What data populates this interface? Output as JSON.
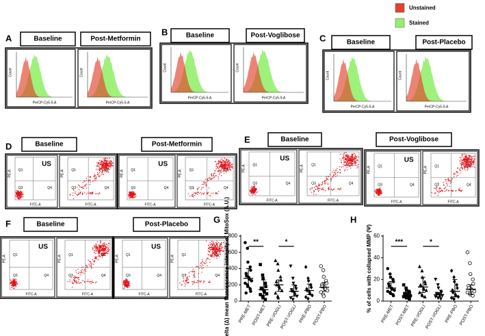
{
  "legend": {
    "items": [
      {
        "label": "Unstained",
        "color": "#e2422c"
      },
      {
        "label": "Stained",
        "color": "#93f06c"
      }
    ]
  },
  "histogram_panels": [
    {
      "letter": "A",
      "plots": [
        {
          "title": "Baseline",
          "y_label": "Count",
          "x_label": "PerCP-Cy5-5-A"
        },
        {
          "title": "Post-Metformin",
          "y_label": "Count",
          "x_label": "PerCP-Cy5-5-A"
        }
      ]
    },
    {
      "letter": "B",
      "plots": [
        {
          "title": "Baseline",
          "y_label": "Count",
          "x_label": "PerCP-Cy5-5-A"
        },
        {
          "title": "Post-Voglibose",
          "y_label": "Count",
          "x_label": "PerCP-Cy5-5-A"
        }
      ]
    },
    {
      "letter": "C",
      "plots": [
        {
          "title": "Baseline",
          "y_label": "Count",
          "x_label": "PerCP-Cy5-5-A"
        },
        {
          "title": "Post-Placebo",
          "y_label": "Count",
          "x_label": "PerCP-Cy5-5-A"
        }
      ]
    }
  ],
  "flow_panels": [
    {
      "letter": "D",
      "groups": [
        {
          "title": "Baseline",
          "plots": [
            {
              "tag": "US",
              "quadrants": [
                "Q1",
                "Q3",
                "Q4"
              ],
              "y_label": "PE-A",
              "x_label": "FITC-A"
            },
            {
              "quadrants": [
                "Q1",
                "Q2",
                "Q3",
                "Q4"
              ],
              "y_label": "PE-A",
              "x_label": "FITC-A"
            }
          ]
        },
        {
          "title": "Post-Metformin",
          "plots": [
            {
              "tag": "US",
              "quadrants": [
                "Q1",
                "Q3",
                "Q4"
              ],
              "y_label": "PE-A",
              "x_label": "FITC-A"
            },
            {
              "quadrants": [
                "Q1",
                "Q2",
                "Q3",
                "Q4"
              ],
              "y_label": "PE-A",
              "x_label": "FITC-A"
            }
          ]
        }
      ]
    },
    {
      "letter": "E",
      "groups": [
        {
          "title": "Baseline",
          "plots": [
            {
              "tag": "US",
              "quadrants": [
                "Q1",
                "Q3",
                "Q4"
              ],
              "y_label": "PE-A",
              "x_label": "FITC-A"
            },
            {
              "quadrants": [
                "Q1",
                "Q2",
                "Q3",
                "Q4"
              ],
              "y_label": "PE-A",
              "x_label": "FITC-A"
            }
          ]
        },
        {
          "title": "Post-Voglibose",
          "plots": [
            {
              "tag": "US",
              "quadrants": [
                "Q1",
                "Q3",
                "Q4"
              ],
              "y_label": "PE-A",
              "x_label": "FITC-A"
            },
            {
              "quadrants": [
                "Q1",
                "Q2",
                "Q3",
                "Q4"
              ],
              "y_label": "PE-A",
              "x_label": "FITC-A"
            }
          ]
        }
      ]
    },
    {
      "letter": "F",
      "groups": [
        {
          "title": "Baseline",
          "plots": [
            {
              "tag": "US",
              "quadrants": [
                "Q1",
                "Q3",
                "Q4"
              ],
              "y_label": "PE-A",
              "x_label": "FITC-A"
            },
            {
              "quadrants": [
                "Q1",
                "Q2",
                "Q3",
                "Q4"
              ],
              "y_label": "PE-A",
              "x_label": "FITC-A"
            }
          ]
        },
        {
          "title": "Post-Placebo",
          "plots": [
            {
              "tag": "US",
              "quadrants": [
                "Q1",
                "Q3",
                "Q4"
              ],
              "y_label": "PE-A",
              "x_label": "FITC-A"
            },
            {
              "quadrants": [
                "Q1",
                "Q2",
                "Q3",
                "Q4"
              ],
              "y_label": "PE-A",
              "x_label": "FITC-A"
            }
          ]
        }
      ]
    }
  ],
  "chart_data": [
    {
      "type": "strip",
      "letter": "G",
      "y_label": "Delta (Δ) mean fluorescence intensity of MitoSox (A.U.)",
      "categories": [
        "PRE-MET",
        "POST-MET",
        "PRE-VOGLI",
        "POST-VOGLI",
        "PRE-PBO",
        "POST-PBO"
      ],
      "markers": [
        "circle",
        "square",
        "triangle",
        "triangle-down",
        "diamond",
        "circle-open"
      ],
      "color": "#000000",
      "ylim": [
        0,
        800
      ],
      "yticks": [
        0,
        200,
        400,
        600,
        800
      ],
      "points": [
        [
          720,
          650,
          480,
          420,
          380,
          340,
          310,
          290,
          270,
          250,
          220,
          200,
          180,
          150,
          120,
          100
        ],
        [
          450,
          320,
          280,
          220,
          180,
          160,
          150,
          130,
          110,
          90,
          80,
          60,
          40,
          20
        ],
        [
          500,
          460,
          380,
          300,
          260,
          240,
          200,
          180,
          160,
          130,
          100,
          60,
          40
        ],
        [
          430,
          280,
          220,
          180,
          150,
          140,
          120,
          100,
          80,
          60,
          40,
          20
        ],
        [
          420,
          280,
          250,
          200,
          170,
          150,
          130,
          110,
          90,
          70,
          50,
          30
        ],
        [
          430,
          380,
          300,
          250,
          220,
          200,
          180,
          170,
          150,
          130,
          110,
          80,
          60
        ]
      ],
      "center": [
        280,
        140,
        200,
        120,
        130,
        170
      ],
      "low": [
        170,
        70,
        120,
        60,
        80,
        120
      ],
      "high": [
        400,
        260,
        260,
        200,
        210,
        230
      ],
      "annotations": [
        "**",
        "*"
      ]
    },
    {
      "type": "strip",
      "letter": "H",
      "y_label": "% of cells with collapsed MMP (Ψ)",
      "categories": [
        "PRE-MET",
        "POST-MET",
        "PRE-VOGLI",
        "POST-VOGLI",
        "PRE-PBO",
        "POST-PBO"
      ],
      "markers": [
        "circle",
        "square",
        "triangle",
        "triangle-down",
        "diamond",
        "circle-open"
      ],
      "color": "#000000",
      "ylim": [
        0,
        60
      ],
      "yticks": [
        0,
        20,
        40,
        60
      ],
      "points": [
        [
          30,
          25,
          22,
          20,
          18,
          16,
          14,
          12,
          11,
          10,
          9,
          8,
          7,
          6,
          5
        ],
        [
          15,
          12,
          10,
          9,
          8,
          7,
          6,
          6,
          5,
          5,
          4,
          4,
          3,
          3,
          2
        ],
        [
          32,
          28,
          22,
          18,
          16,
          15,
          14,
          12,
          11,
          10,
          8,
          6,
          5,
          4
        ],
        [
          20,
          15,
          12,
          9,
          8,
          7,
          6,
          6,
          5,
          5,
          4,
          3,
          3,
          2
        ],
        [
          28,
          22,
          18,
          15,
          12,
          10,
          8,
          6,
          5,
          4,
          3,
          2
        ],
        [
          45,
          35,
          25,
          20,
          16,
          14,
          12,
          11,
          10,
          9,
          8,
          7,
          6,
          5
        ]
      ],
      "center": [
        12,
        5,
        13,
        6,
        9,
        11
      ],
      "low": [
        7,
        3,
        8,
        4,
        4,
        6
      ],
      "high": [
        18,
        8,
        22,
        8,
        20,
        15
      ],
      "annotations": [
        "***",
        "*"
      ]
    }
  ]
}
